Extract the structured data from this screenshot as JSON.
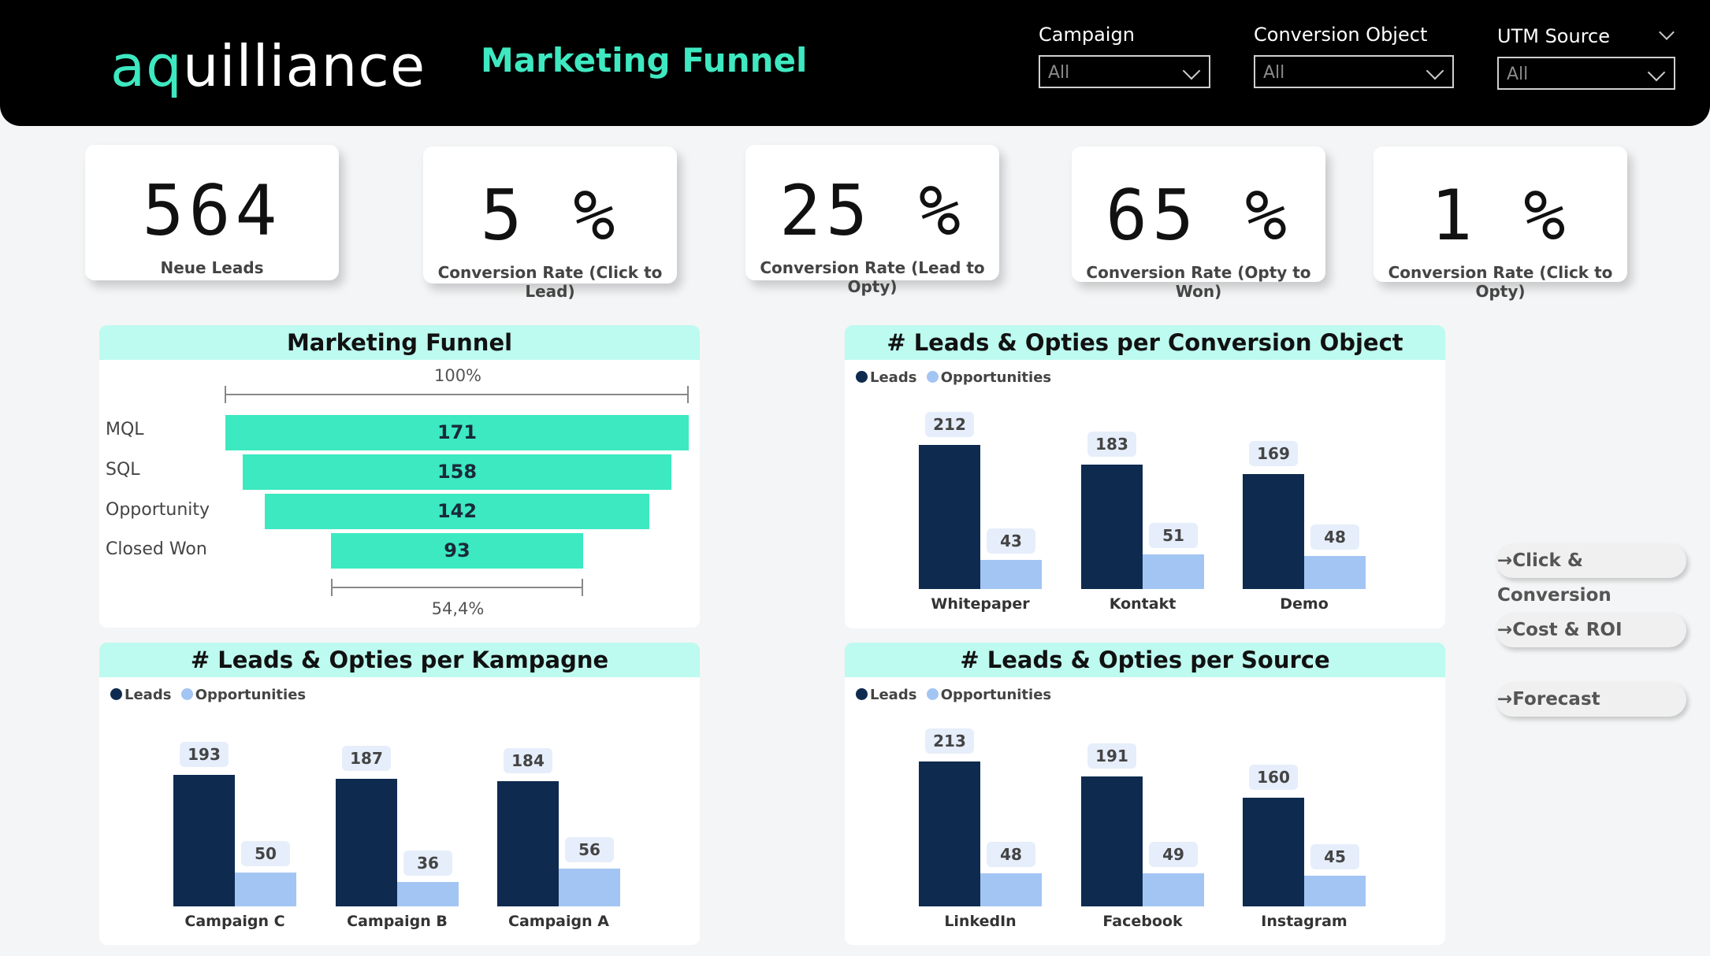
{
  "header": {
    "logo_prefix": "aq",
    "logo_rest": "uilliance",
    "title": "Marketing Funnel",
    "filters": [
      {
        "label": "Campaign",
        "value": "All"
      },
      {
        "label": "Conversion Object",
        "value": "All"
      },
      {
        "label": "UTM Source",
        "value": "All"
      }
    ]
  },
  "kpis": [
    {
      "value": "564",
      "label": "Neue Leads"
    },
    {
      "value": "5 %",
      "label": "Conversion Rate (Click to Lead)"
    },
    {
      "value": "25 %",
      "label": "Conversion Rate (Lead to Opty)"
    },
    {
      "value": "65 %",
      "label": "Conversion Rate (Opty to Won)"
    },
    {
      "value": "1 %",
      "label": "Conversion Rate (Click to Opty)"
    }
  ],
  "funnel": {
    "title": "Marketing Funnel",
    "top_pct": "100%",
    "bottom_pct": "54,4%",
    "stages": [
      {
        "name": "MQL",
        "value": 171
      },
      {
        "name": "SQL",
        "value": 158
      },
      {
        "name": "Opportunity",
        "value": 142
      },
      {
        "name": "Closed Won",
        "value": 93
      }
    ]
  },
  "legend": {
    "leads": "Leads",
    "opps": "Opportunities"
  },
  "chart_data": [
    {
      "type": "bar",
      "title": "# Leads & Opties per Conversion Object",
      "categories": [
        "Whitepaper",
        "Kontakt",
        "Demo"
      ],
      "series": [
        {
          "name": "Leads",
          "values": [
            212,
            183,
            169
          ]
        },
        {
          "name": "Opportunities",
          "values": [
            43,
            51,
            48
          ]
        }
      ],
      "legend_position": "top-left"
    },
    {
      "type": "bar",
      "title": "# Leads & Opties per Kampagne",
      "categories": [
        "Campaign C",
        "Campaign B",
        "Campaign A"
      ],
      "series": [
        {
          "name": "Leads",
          "values": [
            193,
            187,
            184
          ]
        },
        {
          "name": "Opportunities",
          "values": [
            50,
            36,
            56
          ]
        }
      ],
      "legend_position": "top-left"
    },
    {
      "type": "bar",
      "title": "# Leads & Opties per Source",
      "categories": [
        "LinkedIn",
        "Facebook",
        "Instagram"
      ],
      "series": [
        {
          "name": "Leads",
          "values": [
            213,
            191,
            160
          ]
        },
        {
          "name": "Opportunities",
          "values": [
            48,
            49,
            45
          ]
        }
      ],
      "legend_position": "top-left"
    }
  ],
  "nav": [
    {
      "label": "→Click & Conversion"
    },
    {
      "label": "→Cost & ROI"
    },
    {
      "label": "→Forecast"
    }
  ]
}
